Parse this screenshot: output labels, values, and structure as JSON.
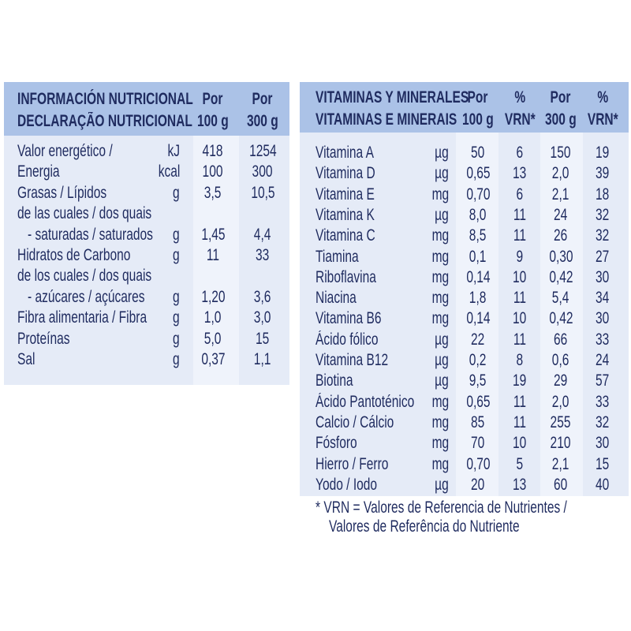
{
  "colors": {
    "header": "#abc2e7",
    "body": "#e5ebf7",
    "text": "#1f2b5f"
  },
  "nutrition": {
    "header": {
      "title1": "INFORMACIÓN NUTRICIONAL",
      "title2": "DECLARAÇÃO NUTRICIONAL",
      "col1a": "Por",
      "col1b": "100 g",
      "col2a": "Por",
      "col2b": "300 g"
    },
    "rows": [
      {
        "label": "Valor energético /",
        "unit": "kJ",
        "v100": "418",
        "v300": "1254"
      },
      {
        "label": "Energia",
        "unit": "kcal",
        "v100": "100",
        "v300": "300"
      },
      {
        "label": "Grasas / Lípidos",
        "unit": "g",
        "v100": "3,5",
        "v300": "10,5"
      },
      {
        "label": "de las cuales / dos quais",
        "unit": "",
        "v100": "",
        "v300": ""
      },
      {
        "label": "   - saturadas / saturados",
        "unit": "g",
        "v100": "1,45",
        "v300": "4,4"
      },
      {
        "label": "Hidratos de Carbono",
        "unit": "g",
        "v100": "11",
        "v300": "33"
      },
      {
        "label": "de los cuales / dos quais",
        "unit": "",
        "v100": "",
        "v300": ""
      },
      {
        "label": "   - azúcares / açúcares",
        "unit": "g",
        "v100": "1,20",
        "v300": "3,6"
      },
      {
        "label": "Fibra alimentaria / Fibra",
        "unit": "g",
        "v100": "1,0",
        "v300": "3,0"
      },
      {
        "label": "Proteínas",
        "unit": "g",
        "v100": "5,0",
        "v300": "15"
      },
      {
        "label": "Sal",
        "unit": "g",
        "v100": "0,37",
        "v300": "1,1"
      }
    ]
  },
  "vitamins": {
    "header": {
      "title1": "VITAMINAS Y MINERALES",
      "title2": "VITAMINAS E MINERAIS",
      "c1a": "Por",
      "c1b": "100 g",
      "c2a": "%",
      "c2b": "VRN*",
      "c3a": "Por",
      "c3b": "300 g",
      "c4a": "%",
      "c4b": "VRN*"
    },
    "rows": [
      {
        "label": "Vitamina A",
        "unit": "µg",
        "v100": "50",
        "p100": "6",
        "v300": "150",
        "p300": "19"
      },
      {
        "label": "Vitamina D",
        "unit": "µg",
        "v100": "0,65",
        "p100": "13",
        "v300": "2,0",
        "p300": "39"
      },
      {
        "label": "Vitamina E",
        "unit": "mg",
        "v100": "0,70",
        "p100": "6",
        "v300": "2,1",
        "p300": "18"
      },
      {
        "label": "Vitamina K",
        "unit": "µg",
        "v100": "8,0",
        "p100": "11",
        "v300": "24",
        "p300": "32"
      },
      {
        "label": "Vitamina C",
        "unit": "mg",
        "v100": "8,5",
        "p100": "11",
        "v300": "26",
        "p300": "32"
      },
      {
        "label": "Tiamina",
        "unit": "mg",
        "v100": "0,1",
        "p100": "9",
        "v300": "0,30",
        "p300": "27"
      },
      {
        "label": "Riboflavina",
        "unit": "mg",
        "v100": "0,14",
        "p100": "10",
        "v300": "0,42",
        "p300": "30"
      },
      {
        "label": "Niacina",
        "unit": "mg",
        "v100": "1,8",
        "p100": "11",
        "v300": "5,4",
        "p300": "34"
      },
      {
        "label": "Vitamina B6",
        "unit": "mg",
        "v100": "0,14",
        "p100": "10",
        "v300": "0,42",
        "p300": "30"
      },
      {
        "label": "Ácido fólico",
        "unit": "µg",
        "v100": "22",
        "p100": "11",
        "v300": "66",
        "p300": "33"
      },
      {
        "label": "Vitamina B12",
        "unit": "µg",
        "v100": "0,2",
        "p100": "8",
        "v300": "0,6",
        "p300": "24"
      },
      {
        "label": "Biotina",
        "unit": "µg",
        "v100": "9,5",
        "p100": "19",
        "v300": "29",
        "p300": "57"
      },
      {
        "label": "Ácido Pantoténico",
        "unit": "mg",
        "v100": "0,65",
        "p100": "11",
        "v300": "2,0",
        "p300": "33"
      },
      {
        "label": "Calcio / Cálcio",
        "unit": "mg",
        "v100": "85",
        "p100": "11",
        "v300": "255",
        "p300": "32"
      },
      {
        "label": "Fósforo",
        "unit": "mg",
        "v100": "70",
        "p100": "10",
        "v300": "210",
        "p300": "30"
      },
      {
        "label": "Hierro / Ferro",
        "unit": "mg",
        "v100": "0,70",
        "p100": "5",
        "v300": "2,1",
        "p300": "15"
      },
      {
        "label": "Yodo / Iodo",
        "unit": "µg",
        "v100": "20",
        "p100": "13",
        "v300": "60",
        "p300": "40"
      }
    ],
    "footnote1": "* VRN = Valores de Referencia de Nutrientes /",
    "footnote2": "Valores de Referência do Nutriente"
  }
}
